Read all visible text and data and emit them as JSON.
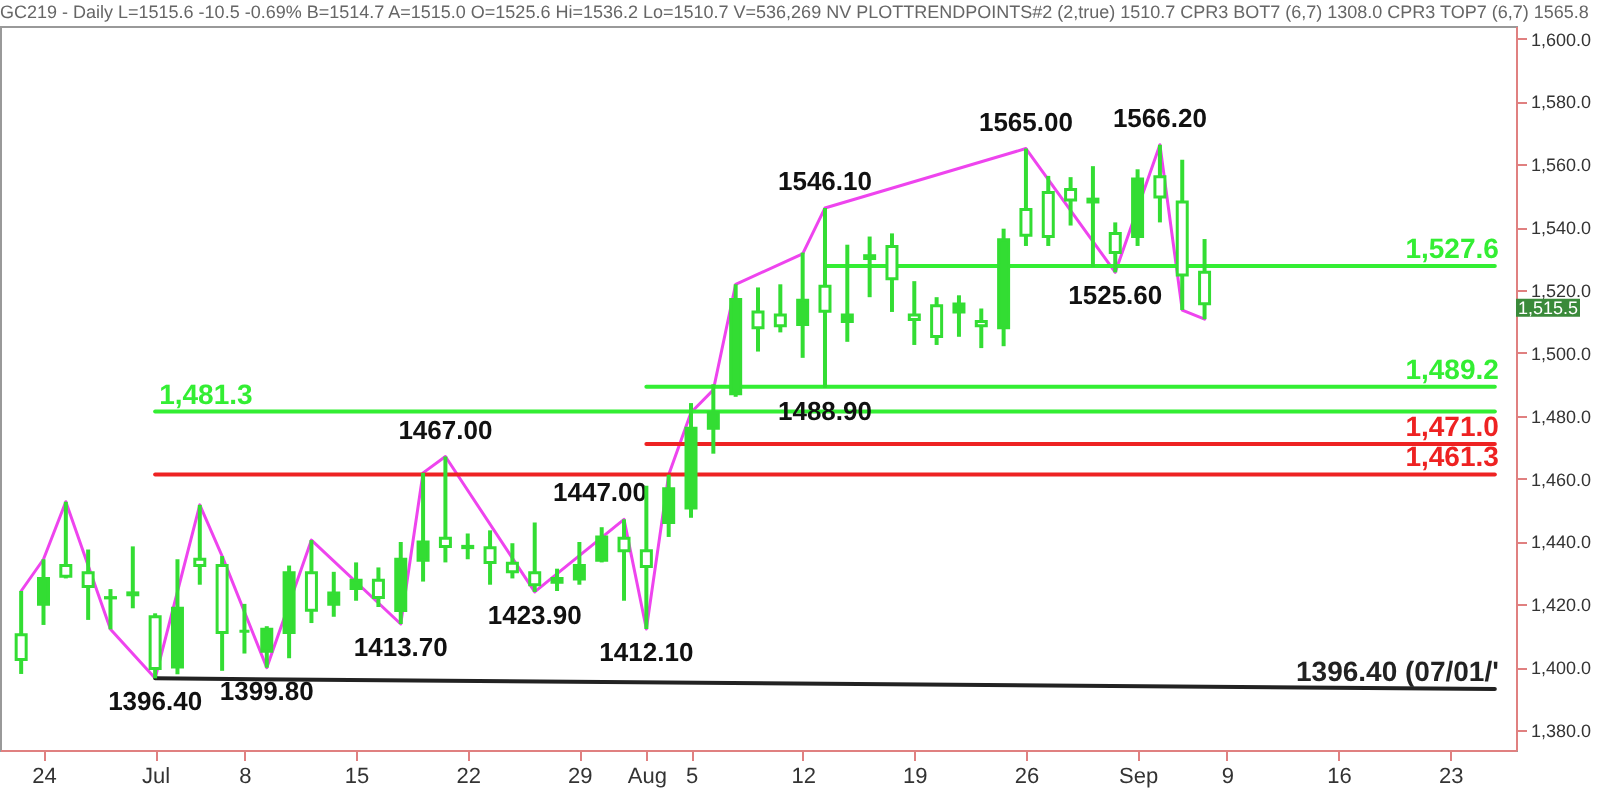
{
  "chart_data": {
    "type": "candlestick",
    "title": "GC219 - Daily L=1515.6 -10.5 -0.69% B=1514.7 A=1515.0 O=1525.6 Hi=1536.2 Lo=1510.7 V=536,269 NV PLOTTRENDPOINTS#2 (2,true) 1510.7 CPR3 BOT7 (6,7) 1308.0 CPR3 TOP7 (6,7) 1565.8",
    "categories": [
      null,
      "24",
      null,
      null,
      null,
      null,
      "Jul",
      null,
      null,
      null,
      "8",
      null,
      null,
      null,
      null,
      "15",
      null,
      null,
      null,
      null,
      "22",
      null,
      null,
      null,
      null,
      "29",
      null,
      null,
      "Aug",
      null,
      "5",
      null,
      null,
      null,
      null,
      "12",
      null,
      null,
      null,
      null,
      "19",
      null,
      null,
      null,
      null,
      "26",
      null,
      null,
      null,
      null,
      "Sep",
      null,
      null,
      null,
      "9",
      null,
      null,
      null,
      null,
      "16",
      null,
      null,
      null,
      null,
      "23",
      null,
      null
    ],
    "ylim": [
      1373.6,
      1604
    ],
    "yticks": [
      {
        "value": 1380,
        "label": "1,380.0"
      },
      {
        "value": 1400,
        "label": "1,400.0"
      },
      {
        "value": 1420,
        "label": "1,420.0"
      },
      {
        "value": 1440,
        "label": "1,440.0"
      },
      {
        "value": 1460,
        "label": "1,460.0"
      },
      {
        "value": 1480,
        "label": "1,480.0"
      },
      {
        "value": 1500,
        "label": "1,500.0"
      },
      {
        "value": 1520,
        "label": "1,520.0"
      },
      {
        "value": 1540,
        "label": "1,540.0"
      },
      {
        "value": 1560,
        "label": "1,560.0"
      },
      {
        "value": 1580,
        "label": "1,580.0"
      },
      {
        "value": 1600,
        "label": "1,600.0"
      }
    ],
    "grid": false,
    "series": [
      {
        "color": "#33dd33",
        "ohlc": [
          [
            1410.3,
            1424.2,
            1397.8,
            1402.4
          ],
          [
            1420,
            1434.3,
            1413.4,
            1428.2
          ],
          [
            1432.3,
            1452.6,
            1428.2,
            1428.9
          ],
          [
            1430,
            1437.4,
            1415.0,
            1425.6
          ],
          [
            1422,
            1424.8,
            1412.0,
            1422.1
          ],
          [
            1423,
            1438.4,
            1418.7,
            1423.6
          ],
          [
            1416,
            1417.1,
            1396.4,
            1399.5
          ],
          [
            1400,
            1434.3,
            1397.7,
            1418.7
          ],
          [
            1434.3,
            1451.6,
            1426.2,
            1432.3
          ],
          [
            1432.3,
            1435.3,
            1398.8,
            1411.0
          ],
          [
            1411.4,
            1420.1,
            1404.3,
            1411.4
          ],
          [
            1405,
            1413.0,
            1399.8,
            1412.0
          ],
          [
            1411,
            1432.3,
            1402.8,
            1430
          ],
          [
            1430,
            1440.4,
            1414.0,
            1418.1
          ],
          [
            1420,
            1430.3,
            1416.0,
            1423.6
          ],
          [
            1425,
            1433.3,
            1421.1,
            1427.6
          ],
          [
            1427.6,
            1431.7,
            1419.1,
            1422.1
          ],
          [
            1418,
            1439.8,
            1413.7,
            1434.3
          ],
          [
            1434,
            1461.8,
            1427.2,
            1439.8
          ],
          [
            1441,
            1467.0,
            1433.3,
            1438.4
          ],
          [
            1438,
            1442.5,
            1434.3,
            1438.4
          ],
          [
            1438,
            1443.5,
            1426.2,
            1433.3
          ],
          [
            1433,
            1439.4,
            1428.2,
            1430.3
          ],
          [
            1430,
            1446.0,
            1423.9,
            1426.2
          ],
          [
            1427,
            1431.3,
            1424.2,
            1428.2
          ],
          [
            1428,
            1439.8,
            1426.2,
            1432.3
          ],
          [
            1434,
            1444.5,
            1433.3,
            1441.4
          ],
          [
            1441,
            1447.0,
            1421.1,
            1437
          ],
          [
            1437,
            1457.7,
            1412.1,
            1432
          ],
          [
            1446,
            1461.2,
            1441.4,
            1456.7
          ],
          [
            1450.6,
            1484,
            1447.5,
            1476
          ],
          [
            1476,
            1490,
            1467.9,
            1481
          ],
          [
            1487,
            1521.8,
            1486,
            1517
          ],
          [
            1513,
            1520.8,
            1500.4,
            1508
          ],
          [
            1512,
            1521.8,
            1506.5,
            1508.6
          ],
          [
            1509,
            1531.9,
            1498.4,
            1516.7
          ],
          [
            1521.2,
            1546.1,
            1488.9,
            1513.2
          ],
          [
            1510,
            1534.4,
            1503.5,
            1512
          ],
          [
            1530,
            1537.0,
            1517.7,
            1530.9
          ],
          [
            1533.8,
            1538.0,
            1513.0,
            1523.6
          ],
          [
            1512,
            1522.8,
            1502.5,
            1510.6
          ],
          [
            1515,
            1517.7,
            1502.5,
            1505.2
          ],
          [
            1513,
            1518.3,
            1505.1,
            1515.5
          ],
          [
            1510,
            1514.1,
            1501.5,
            1508.6
          ],
          [
            1508,
            1539.5,
            1502.1,
            1536
          ],
          [
            1545.6,
            1565.0,
            1534.0,
            1537.4
          ],
          [
            1551,
            1556.3,
            1534.0,
            1537
          ],
          [
            1552,
            1555.9,
            1540.5,
            1548.6
          ],
          [
            1548,
            1559.4,
            1527.3,
            1548.9
          ],
          [
            1538,
            1541.5,
            1525.6,
            1531.9
          ],
          [
            1537,
            1558.4,
            1534.0,
            1555.3
          ],
          [
            1556,
            1566.2,
            1541.5,
            1549.6
          ],
          [
            1548,
            1561.4,
            1513.6,
            1524.8
          ],
          [
            1525.6,
            1536.2,
            1510.7,
            1515.6
          ],
          null,
          null,
          null,
          null,
          null,
          null,
          null,
          null,
          null,
          null,
          null,
          null,
          null
        ]
      },
      {
        "type": "line",
        "color": "#ee44ee",
        "values": [
          1424.2,
          1434.3,
          1452.6,
          null,
          1412.0,
          null,
          1396.4,
          null,
          1451.6,
          1435.3,
          null,
          1399.8,
          null,
          1440.4,
          null,
          null,
          null,
          1413.7,
          1461.8,
          1467.0,
          null,
          null,
          null,
          1423.9,
          null,
          null,
          null,
          1447.0,
          1412.1,
          1461.2,
          1481,
          1488.2,
          1521.8,
          null,
          null,
          1531.5,
          1546.1,
          null,
          null,
          null,
          null,
          null,
          null,
          null,
          null,
          1565.0,
          null,
          null,
          null,
          1525.6,
          null,
          1566.2,
          1513.6,
          1510.7,
          null,
          null,
          null,
          null,
          null,
          null,
          null,
          null,
          null,
          null,
          null,
          null,
          null
        ]
      },
      {
        "type": "line",
        "name": "1,527.6",
        "color": "#33ee33",
        "values": [
          null,
          null,
          null,
          null,
          null,
          null,
          null,
          null,
          null,
          null,
          null,
          null,
          null,
          null,
          null,
          null,
          null,
          null,
          null,
          null,
          null,
          null,
          null,
          null,
          null,
          null,
          null,
          null,
          null,
          null,
          null,
          null,
          null,
          null,
          null,
          null,
          1527.6,
          1527.6,
          1527.6,
          1527.6,
          1527.6,
          1527.6,
          1527.6,
          1527.6,
          1527.6,
          1527.6,
          1527.6,
          1527.6,
          1527.6,
          1527.6,
          1527.6,
          1527.6,
          1527.6,
          1527.6,
          1527.6,
          1527.6,
          1527.6,
          1527.6,
          1527.6,
          1527.6,
          1527.6,
          1527.6,
          1527.6,
          1527.6,
          1527.6,
          1527.6,
          1527.6
        ]
      },
      {
        "type": "line",
        "name": "1,489.2",
        "color": "#33ee33",
        "values": [
          null,
          null,
          null,
          null,
          null,
          null,
          null,
          null,
          null,
          null,
          null,
          null,
          null,
          null,
          null,
          null,
          null,
          null,
          null,
          null,
          null,
          null,
          null,
          null,
          null,
          null,
          null,
          null,
          1489.2,
          1489.2,
          1489.2,
          1489.2,
          1489.2,
          1489.2,
          1489.2,
          1489.2,
          1489.2,
          1489.2,
          1489.2,
          1489.2,
          1489.2,
          1489.2,
          1489.2,
          1489.2,
          1489.2,
          1489.2,
          1489.2,
          1489.2,
          1489.2,
          1489.2,
          1489.2,
          1489.2,
          1489.2,
          1489.2,
          1489.2,
          1489.2,
          1489.2,
          1489.2,
          1489.2,
          1489.2,
          1489.2,
          1489.2,
          1489.2,
          1489.2,
          1489.2,
          1489.2,
          1489.2
        ]
      },
      {
        "type": "line",
        "name": "1,481.3",
        "color": "#33ee33",
        "values": [
          null,
          null,
          null,
          null,
          null,
          null,
          1481.3,
          1481.3,
          1481.3,
          1481.3,
          1481.3,
          1481.3,
          1481.3,
          1481.3,
          1481.3,
          1481.3,
          1481.3,
          1481.3,
          1481.3,
          1481.3,
          1481.3,
          1481.3,
          1481.3,
          1481.3,
          1481.3,
          1481.3,
          1481.3,
          1481.3,
          1481.3,
          1481.3,
          1481.3,
          1481.3,
          1481.3,
          1481.3,
          1481.3,
          1481.3,
          1481.3,
          1481.3,
          1481.3,
          1481.3,
          1481.3,
          1481.3,
          1481.3,
          1481.3,
          1481.3,
          1481.3,
          1481.3,
          1481.3,
          1481.3,
          1481.3,
          1481.3,
          1481.3,
          1481.3,
          1481.3,
          1481.3,
          1481.3,
          1481.3,
          1481.3,
          1481.3,
          1481.3,
          1481.3,
          1481.3,
          1481.3,
          1481.3,
          1481.3,
          1481.3,
          1481.3
        ]
      },
      {
        "type": "line",
        "name": "1,471.0",
        "color": "#ee2222",
        "values": [
          null,
          null,
          null,
          null,
          null,
          null,
          null,
          null,
          null,
          null,
          null,
          null,
          null,
          null,
          null,
          null,
          null,
          null,
          null,
          null,
          null,
          null,
          null,
          null,
          null,
          null,
          null,
          null,
          1471.0,
          1471.0,
          1471.0,
          1471.0,
          1471.0,
          1471.0,
          1471.0,
          1471.0,
          1471.0,
          1471.0,
          1471.0,
          1471.0,
          1471.0,
          1471.0,
          1471.0,
          1471.0,
          1471.0,
          1471.0,
          1471.0,
          1471.0,
          1471.0,
          1471.0,
          1471.0,
          1471.0,
          1471.0,
          1471.0,
          1471.0,
          1471.0,
          1471.0,
          1471.0,
          1471.0,
          1471.0,
          1471.0,
          1471.0,
          1471.0,
          1471.0,
          1471.0,
          1471.0,
          1471.0
        ]
      },
      {
        "type": "line",
        "name": "1,461.3",
        "color": "#ee2222",
        "values": [
          null,
          null,
          null,
          null,
          null,
          null,
          1461.3,
          1461.3,
          1461.3,
          1461.3,
          1461.3,
          1461.3,
          1461.3,
          1461.3,
          1461.3,
          1461.3,
          1461.3,
          1461.3,
          1461.3,
          1461.3,
          1461.3,
          1461.3,
          1461.3,
          1461.3,
          1461.3,
          1461.3,
          1461.3,
          1461.3,
          1461.3,
          1461.3,
          1461.3,
          1461.3,
          1461.3,
          1461.3,
          1461.3,
          1461.3,
          1461.3,
          1461.3,
          1461.3,
          1461.3,
          1461.3,
          1461.3,
          1461.3,
          1461.3,
          1461.3,
          1461.3,
          1461.3,
          1461.3,
          1461.3,
          1461.3,
          1461.3,
          1461.3,
          1461.3,
          1461.3,
          1461.3,
          1461.3,
          1461.3,
          1461.3,
          1461.3,
          1461.3,
          1461.3,
          1461.3,
          1461.3,
          1461.3,
          1461.3,
          1461.3,
          1461.3
        ]
      },
      {
        "type": "line",
        "name": "1396.40 (07/01/'",
        "color": "#222222",
        "values": [
          null,
          null,
          null,
          null,
          null,
          null,
          1396.4,
          null,
          null,
          null,
          null,
          null,
          null,
          null,
          null,
          null,
          null,
          null,
          null,
          null,
          null,
          null,
          null,
          null,
          null,
          null,
          null,
          null,
          null,
          null,
          null,
          null,
          null,
          null,
          null,
          null,
          null,
          null,
          null,
          null,
          null,
          null,
          null,
          null,
          null,
          null,
          null,
          null,
          null,
          null,
          null,
          null,
          null,
          null,
          null,
          null,
          null,
          null,
          null,
          null,
          null,
          null,
          null,
          null,
          null,
          null,
          1393.0
        ]
      }
    ],
    "annotations": [
      {
        "text": "1396.40",
        "y": 1396.4
      },
      {
        "text": "1399.80",
        "y": 1399.8
      },
      {
        "text": "1413.70",
        "y": 1413.7
      },
      {
        "text": "1467.00",
        "y": 1467.0
      },
      {
        "text": "1447.00",
        "y": 1447.0
      },
      {
        "text": "1423.90",
        "y": 1423.9
      },
      {
        "text": "1412.10",
        "y": 1412.1
      },
      {
        "text": "1488.90",
        "y": 1488.9
      },
      {
        "text": "1546.10",
        "y": 1546.1
      },
      {
        "text": "1565.00",
        "y": 1565.0
      },
      {
        "text": "1566.20",
        "y": 1566.2
      },
      {
        "text": "1525.60",
        "y": 1525.6
      },
      "1,515.5"
    ]
  }
}
